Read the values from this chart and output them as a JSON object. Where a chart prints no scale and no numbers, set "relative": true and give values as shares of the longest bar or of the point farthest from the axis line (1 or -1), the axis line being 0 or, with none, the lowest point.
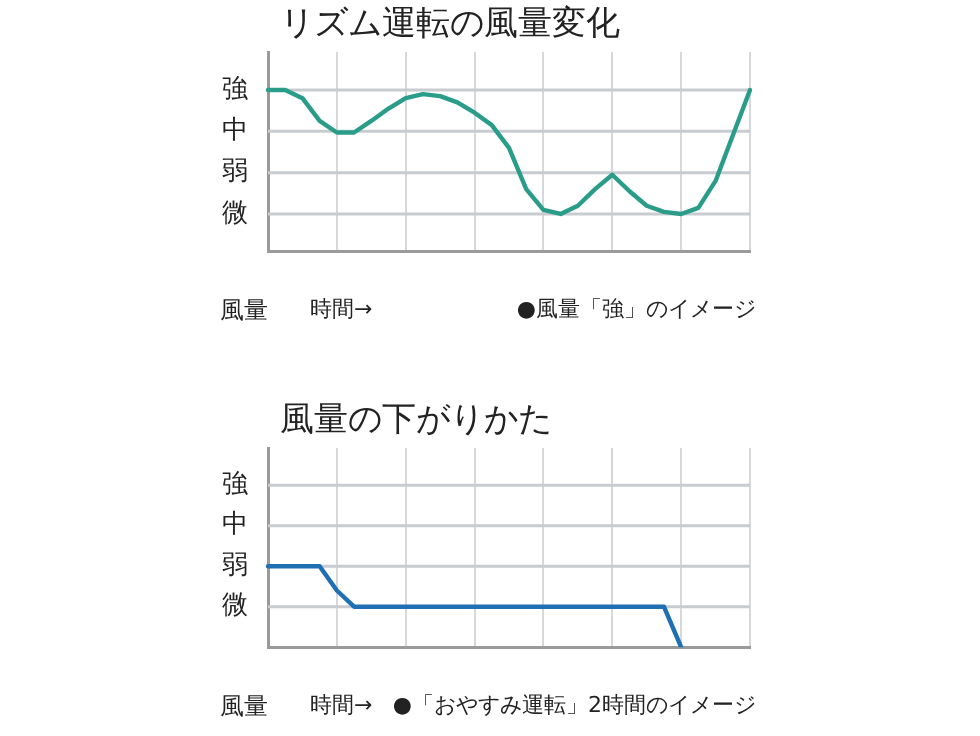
{
  "chart_data": [
    {
      "type": "line",
      "title": "リズム運転の風量変化",
      "xlabel": "時間→",
      "ylabel": "風量",
      "relative": true,
      "annotations": [
        "●風量「強」のイメージ"
      ],
      "ref_lines": [
        {
          "axis": "y",
          "value": 1,
          "label": "強",
          "color": "#c8ccd0"
        },
        {
          "axis": "y",
          "value": 0.744,
          "label": "中",
          "color": "#c8ccd0"
        },
        {
          "axis": "y",
          "value": 0.487,
          "label": "弱",
          "color": "#c8ccd0"
        },
        {
          "axis": "y",
          "value": 0.231,
          "label": "微",
          "color": "#c8ccd0"
        }
      ],
      "categories": [
        null,
        null,
        null,
        null,
        null,
        null,
        null,
        null,
        null,
        null,
        null,
        null,
        null,
        null,
        null,
        null,
        null,
        null,
        null,
        null,
        null,
        null,
        null,
        null,
        null,
        null,
        null,
        null,
        null
      ],
      "series": [
        {
          "color": "#2a9d8a",
          "values": [
            1,
            1,
            0.949,
            0.808,
            0.736,
            0.736,
            0.808,
            0.885,
            0.949,
            0.974,
            0.962,
            0.923,
            0.859,
            0.782,
            0.641,
            0.385,
            0.256,
            0.231,
            0.282,
            0.385,
            0.474,
            0.372,
            0.282,
            0.244,
            0.231,
            0.269,
            0.436,
            0.718,
            1
          ]
        }
      ],
      "grid": "x",
      "marker": "none",
      "line_style": "solid"
    },
    {
      "type": "line",
      "title": "風量の下がりかた",
      "xlabel": "時間→",
      "ylabel": "風量",
      "relative": true,
      "annotations": [
        "●「おやすみ運転」2時間のイメージ"
      ],
      "ref_lines": [
        {
          "axis": "y",
          "value": 2,
          "label": "強",
          "color": "#c8ccd0"
        },
        {
          "axis": "y",
          "value": 1.5,
          "label": "中",
          "color": "#c8ccd0"
        },
        {
          "axis": "y",
          "value": 1,
          "label": "弱",
          "color": "#c8ccd0"
        },
        {
          "axis": "y",
          "value": 0.5,
          "label": "微",
          "color": "#c8ccd0"
        }
      ],
      "categories": [
        null,
        null,
        null,
        null,
        null,
        null,
        null,
        null,
        null,
        null,
        null,
        null,
        null,
        null,
        null,
        null,
        null,
        null,
        null,
        null,
        null,
        null,
        null,
        null,
        null,
        null,
        null,
        null,
        null
      ],
      "series": [
        {
          "color": "#1f6fb5",
          "values": [
            1,
            1,
            1,
            1,
            0.7,
            0.5,
            0.5,
            0.5,
            0.5,
            0.5,
            0.5,
            0.5,
            0.5,
            0.5,
            0.5,
            0.5,
            0.5,
            0.5,
            0.5,
            0.5,
            0.5,
            0.5,
            0.5,
            0.5,
            0,
            null,
            null,
            null,
            null
          ]
        }
      ],
      "grid": "x",
      "marker": "none",
      "line_style": "solid"
    }
  ]
}
